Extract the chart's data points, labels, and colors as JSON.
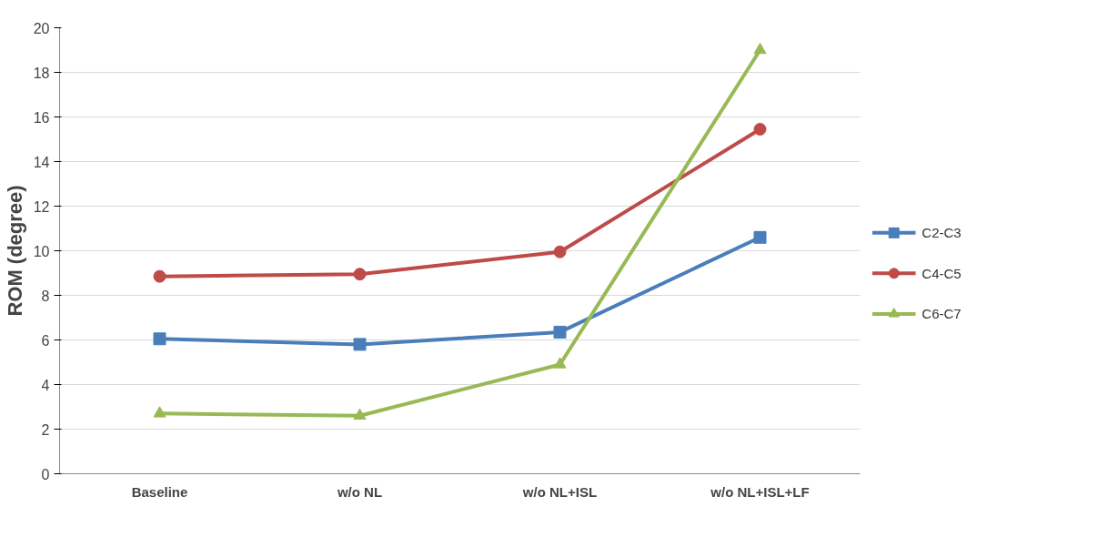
{
  "chart_data": {
    "type": "line",
    "ylabel": "ROM (degree)",
    "categories": [
      "Baseline",
      "w/o NL",
      "w/o NL+ISL",
      "w/o NL+ISL+LF"
    ],
    "series": [
      {
        "name": "C2-C3",
        "color": "#4a7ebb",
        "marker": "square",
        "values": [
          6.05,
          5.8,
          6.35,
          10.6
        ]
      },
      {
        "name": "C4-C5",
        "color": "#be4b48",
        "marker": "circle",
        "values": [
          8.85,
          8.95,
          9.95,
          15.45
        ]
      },
      {
        "name": "C6-C7",
        "color": "#98b954",
        "marker": "triangle",
        "values": [
          2.7,
          2.6,
          4.9,
          19.0
        ]
      }
    ],
    "ylim": [
      0,
      20
    ],
    "yticks": [
      0,
      2,
      4,
      6,
      8,
      10,
      12,
      14,
      16,
      18,
      20
    ],
    "grid": "y",
    "legend": "right"
  }
}
